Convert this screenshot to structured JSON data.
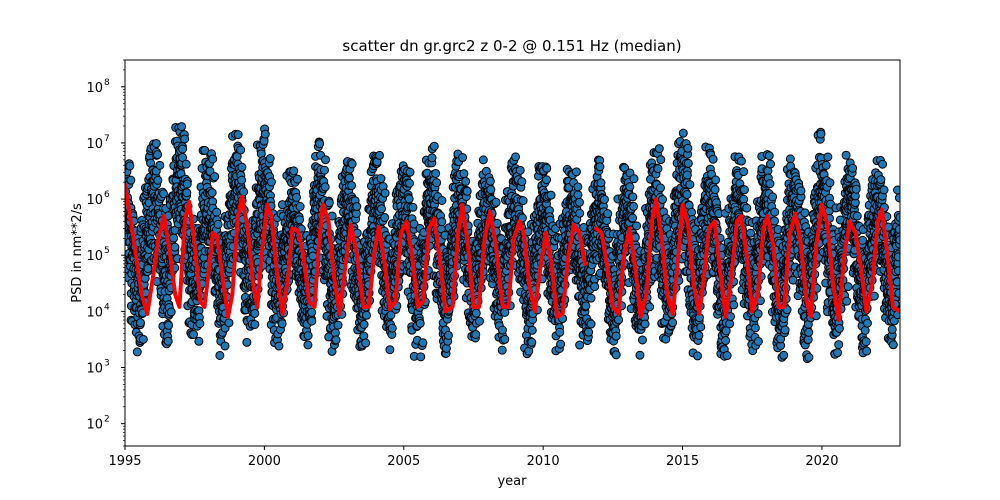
{
  "chart_data": {
    "type": "scatter",
    "title": "scatter dn gr.grc2 z 0-2 @ 0.151 Hz (median)",
    "xlabel": "year",
    "ylabel": "PSD in nm**2/s",
    "xlim": [
      1995,
      2022.8
    ],
    "ylim": [
      40,
      300000000
    ],
    "yscale": "log",
    "x_ticks": [
      1995,
      2000,
      2005,
      2010,
      2015,
      2020
    ],
    "x_tick_labels": [
      "1995",
      "2000",
      "2005",
      "2010",
      "2015",
      "2020"
    ],
    "y_ticks": [
      100,
      1000,
      10000,
      100000,
      1000000,
      10000000,
      100000000
    ],
    "y_tick_labels": [
      "10",
      "10",
      "10",
      "10",
      "10",
      "10",
      "10"
    ],
    "y_tick_exponents": [
      "2",
      "3",
      "4",
      "5",
      "6",
      "7",
      "8"
    ],
    "grid": false,
    "legend": "none",
    "series": [
      {
        "kind": "scatter",
        "color": "#1f77b4",
        "edgecolor": "#000000",
        "note_range": "per-year scatter spans roughly 1e3 to 2e7",
        "yearly_band": [
          {
            "year": 1995,
            "low": 1200,
            "high": 4500000
          },
          {
            "year": 1996,
            "low": 2500,
            "high": 10000000
          },
          {
            "year": 1997,
            "low": 2500,
            "high": 22000000
          },
          {
            "year": 1998,
            "low": 1200,
            "high": 7000000
          },
          {
            "year": 1999,
            "low": 2500,
            "high": 15000000
          },
          {
            "year": 2000,
            "low": 2000,
            "high": 18000000
          },
          {
            "year": 2001,
            "low": 2000,
            "high": 3000000
          },
          {
            "year": 2002,
            "low": 1800,
            "high": 11000000
          },
          {
            "year": 2003,
            "low": 1500,
            "high": 5000000
          },
          {
            "year": 2004,
            "low": 2000,
            "high": 7000000
          },
          {
            "year": 2005,
            "low": 1500,
            "high": 5000000
          },
          {
            "year": 2006,
            "low": 1500,
            "high": 10000000
          },
          {
            "year": 2007,
            "low": 2000,
            "high": 7000000
          },
          {
            "year": 2008,
            "low": 2000,
            "high": 5000000
          },
          {
            "year": 2009,
            "low": 1500,
            "high": 6000000
          },
          {
            "year": 2010,
            "low": 1800,
            "high": 4000000
          },
          {
            "year": 2011,
            "low": 2000,
            "high": 3500000
          },
          {
            "year": 2012,
            "low": 1800,
            "high": 5000000
          },
          {
            "year": 2013,
            "low": 1500,
            "high": 4000000
          },
          {
            "year": 2014,
            "low": 1500,
            "high": 7000000
          },
          {
            "year": 2015,
            "low": 1500,
            "high": 18000000
          },
          {
            "year": 2016,
            "low": 1500,
            "high": 8000000
          },
          {
            "year": 2017,
            "low": 1500,
            "high": 6000000
          },
          {
            "year": 2018,
            "low": 1500,
            "high": 7000000
          },
          {
            "year": 2019,
            "low": 1000,
            "high": 6000000
          },
          {
            "year": 2020,
            "low": 1500,
            "high": 17000000
          },
          {
            "year": 2021,
            "low": 1500,
            "high": 6000000
          },
          {
            "year": 2022,
            "low": 2000,
            "high": 6000000
          }
        ]
      },
      {
        "kind": "line",
        "color": "#ff0000",
        "points": [
          [
            1995.0,
            1800000
          ],
          [
            1995.3,
            200000
          ],
          [
            1995.6,
            20000
          ],
          [
            1995.8,
            9000
          ],
          [
            1996.0,
            40000
          ],
          [
            1996.2,
            200000
          ],
          [
            1996.4,
            500000
          ],
          [
            1996.6,
            120000
          ],
          [
            1996.8,
            20000
          ],
          [
            1996.95,
            12000
          ],
          [
            1997.15,
            400000
          ],
          [
            1997.3,
            900000
          ],
          [
            1997.5,
            150000
          ],
          [
            1997.7,
            15000
          ],
          [
            1997.85,
            12000
          ],
          [
            1998.0,
            50000
          ],
          [
            1998.15,
            250000
          ],
          [
            1998.3,
            220000
          ],
          [
            1998.5,
            40000
          ],
          [
            1998.7,
            8000
          ],
          [
            1998.85,
            20000
          ],
          [
            1999.05,
            500000
          ],
          [
            1999.2,
            1100000
          ],
          [
            1999.4,
            300000
          ],
          [
            1999.6,
            30000
          ],
          [
            1999.75,
            12000
          ],
          [
            1999.9,
            100000
          ],
          [
            2000.1,
            800000
          ],
          [
            2000.25,
            500000
          ],
          [
            2000.45,
            50000
          ],
          [
            2000.65,
            9000
          ],
          [
            2000.85,
            40000
          ],
          [
            2001.0,
            300000
          ],
          [
            2001.2,
            280000
          ],
          [
            2001.4,
            100000
          ],
          [
            2001.6,
            15000
          ],
          [
            2001.8,
            12000
          ],
          [
            2001.95,
            150000
          ],
          [
            2002.1,
            800000
          ],
          [
            2002.3,
            400000
          ],
          [
            2002.5,
            40000
          ],
          [
            2002.7,
            9000
          ],
          [
            2002.9,
            60000
          ],
          [
            2003.1,
            350000
          ],
          [
            2003.3,
            120000
          ],
          [
            2003.55,
            12000
          ],
          [
            2003.75,
            12000
          ],
          [
            2003.95,
            120000
          ],
          [
            2004.1,
            320000
          ],
          [
            2004.3,
            80000
          ],
          [
            2004.5,
            11000
          ],
          [
            2004.7,
            15000
          ],
          [
            2004.9,
            250000
          ],
          [
            2005.1,
            400000
          ],
          [
            2005.3,
            100000
          ],
          [
            2005.5,
            12000
          ],
          [
            2005.7,
            15000
          ],
          [
            2005.9,
            300000
          ],
          [
            2006.1,
            450000
          ],
          [
            2006.3,
            80000
          ],
          [
            2006.5,
            10000
          ],
          [
            2006.75,
            12000
          ],
          [
            2006.95,
            250000
          ],
          [
            2007.1,
            800000
          ],
          [
            2007.3,
            150000
          ],
          [
            2007.5,
            12000
          ],
          [
            2007.7,
            12000
          ],
          [
            2007.9,
            200000
          ],
          [
            2008.1,
            600000
          ],
          [
            2008.3,
            150000
          ],
          [
            2008.55,
            12000
          ],
          [
            2008.75,
            12000
          ],
          [
            2008.95,
            200000
          ],
          [
            2009.15,
            400000
          ],
          [
            2009.3,
            250000
          ],
          [
            2009.5,
            30000
          ],
          [
            2009.7,
            10000
          ],
          [
            2009.9,
            60000
          ],
          [
            2010.1,
            250000
          ],
          [
            2010.3,
            70000
          ],
          [
            2010.5,
            8000
          ],
          [
            2010.7,
            9000
          ],
          [
            2010.9,
            100000
          ],
          [
            2011.1,
            350000
          ],
          [
            2011.3,
            250000
          ],
          [
            2011.5,
            70000
          ],
          [
            2011.75,
            null
          ],
          [
            2011.9,
            300000
          ],
          [
            2012.1,
            250000
          ],
          [
            2012.3,
            60000
          ],
          [
            2012.5,
            12000
          ],
          [
            2012.7,
            9000
          ],
          [
            2012.9,
            100000
          ],
          [
            2013.1,
            300000
          ],
          [
            2013.3,
            60000
          ],
          [
            2013.5,
            8000
          ],
          [
            2013.7,
            20000
          ],
          [
            2013.9,
            400000
          ],
          [
            2014.05,
            1000000
          ],
          [
            2014.25,
            200000
          ],
          [
            2014.45,
            20000
          ],
          [
            2014.65,
            9000
          ],
          [
            2014.85,
            100000
          ],
          [
            2015.0,
            800000
          ],
          [
            2015.2,
            350000
          ],
          [
            2015.4,
            30000
          ],
          [
            2015.6,
            9000
          ],
          [
            2015.8,
            60000
          ],
          [
            2015.95,
            300000
          ],
          [
            2016.15,
            400000
          ],
          [
            2016.35,
            50000
          ],
          [
            2016.55,
            8000
          ],
          [
            2016.75,
            40000
          ],
          [
            2016.95,
            400000
          ],
          [
            2017.1,
            500000
          ],
          [
            2017.3,
            100000
          ],
          [
            2017.5,
            10000
          ],
          [
            2017.7,
            20000
          ],
          [
            2017.9,
            300000
          ],
          [
            2018.05,
            500000
          ],
          [
            2018.25,
            150000
          ],
          [
            2018.45,
            12000
          ],
          [
            2018.65,
            12000
          ],
          [
            2018.85,
            250000
          ],
          [
            2019.05,
            550000
          ],
          [
            2019.25,
            150000
          ],
          [
            2019.45,
            15000
          ],
          [
            2019.6,
            8000
          ],
          [
            2019.8,
            150000
          ],
          [
            2020.0,
            800000
          ],
          [
            2020.2,
            350000
          ],
          [
            2020.4,
            30000
          ],
          [
            2020.6,
            7000
          ],
          [
            2020.8,
            100000
          ],
          [
            2021.0,
            400000
          ],
          [
            2021.2,
            250000
          ],
          [
            2021.4,
            60000
          ],
          [
            2021.6,
            10000
          ],
          [
            2021.8,
            30000
          ],
          [
            2022.0,
            400000
          ],
          [
            2022.15,
            650000
          ],
          [
            2022.35,
            100000
          ],
          [
            2022.55,
            12000
          ],
          [
            2022.8,
            10000
          ]
        ]
      }
    ]
  }
}
